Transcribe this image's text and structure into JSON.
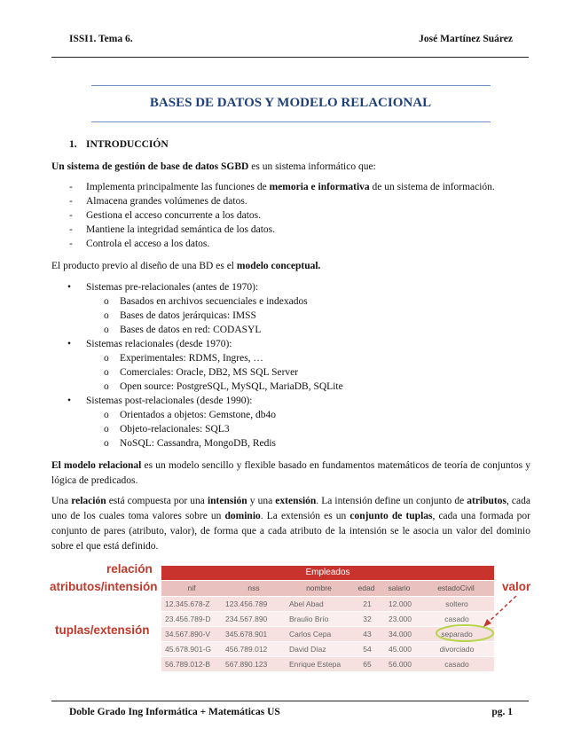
{
  "header": {
    "left": "ISSI1. Tema 6.",
    "right": "José Martínez Suárez"
  },
  "title": "BASES DE DATOS Y MODELO RELACIONAL",
  "section": {
    "number": "1.",
    "title": "INTRODUCCIÓN"
  },
  "intro": [
    {
      "text": "Un sistema de gestión de base de datos SGBD",
      "bold": true
    },
    {
      "text": " es un sistema informático que:"
    }
  ],
  "intro_list": [
    [
      {
        "text": "Implementa principalmente las funciones de "
      },
      {
        "text": "memoria e informativa",
        "bold": true
      },
      {
        "text": " de un sistema de información."
      }
    ],
    [
      {
        "text": "Almacena grandes volúmenes de datos."
      }
    ],
    [
      {
        "text": "Gestiona el acceso concurrente a los datos."
      }
    ],
    [
      {
        "text": "Mantiene la integridad semántica de los datos."
      }
    ],
    [
      {
        "text": "Controla el acceso a los datos."
      }
    ]
  ],
  "para2": [
    {
      "text": "El producto previo al diseño de una BD es el "
    },
    {
      "text": "modelo conceptual.",
      "bold": true
    }
  ],
  "systems": [
    {
      "label": "Sistemas pre-relacionales (antes de 1970):",
      "items": [
        "Basados en archivos secuenciales e indexados",
        "Bases de datos jerárquicas: IMSS",
        "Bases de datos en red: CODASYL"
      ]
    },
    {
      "label": "Sistemas relacionales (desde 1970):",
      "items": [
        "Experimentales: RDMS, Ingres, …",
        "Comerciales: Oracle, DB2, MS SQL Server",
        "Open source: PostgreSQL, MySQL, MariaDB, SQLite"
      ]
    },
    {
      "label": "Sistemas post-relacionales (desde 1990):",
      "items": [
        "Orientados a objetos: Gemstone, db4o",
        "Objeto-relacionales: SQL3",
        "NoSQL: Cassandra, MongoDB, Redis"
      ]
    }
  ],
  "para3": [
    {
      "text": "El modelo relacional",
      "bold": true
    },
    {
      "text": " es un modelo sencillo y flexible basado en fundamentos matemáticos de teoría de conjuntos y lógica de predicados."
    }
  ],
  "para4": [
    {
      "text": "Una "
    },
    {
      "text": "relación",
      "bold": true
    },
    {
      "text": " está compuesta por una "
    },
    {
      "text": "intensión",
      "bold": true
    },
    {
      "text": " y una "
    },
    {
      "text": "extensión",
      "bold": true
    },
    {
      "text": ". La intensión define un conjunto de "
    },
    {
      "text": "atributos",
      "bold": true
    },
    {
      "text": ", cada uno de los cuales toma valores sobre un "
    },
    {
      "text": "dominio",
      "bold": true
    },
    {
      "text": ". La extensión es un "
    },
    {
      "text": "conjunto de tuplas",
      "bold": true
    },
    {
      "text": ", cada una formada por conjunto de pares (atributo, valor), de forma que a cada atributo de la intensión se le asocia un valor del dominio sobre el que está definido."
    }
  ],
  "figure": {
    "labels": {
      "relation": "relación",
      "attributes": "atributos/intensión",
      "tuples": "tuplas/extensión",
      "value": "valor"
    },
    "table": {
      "title": "Empleados",
      "columns": [
        "nif",
        "nss",
        "nombre",
        "edad",
        "salario",
        "estadoCivil"
      ],
      "rows": [
        [
          "12.345.678-Z",
          "123.456.789",
          "Abel Abad",
          21,
          "12.000",
          "soltero"
        ],
        [
          "23.456.789-D",
          "234.567.890",
          "Braulio Brío",
          32,
          "23.000",
          "casado"
        ],
        [
          "34.567.890-V",
          "345.678.901",
          "Carlos Cepa",
          43,
          "34.000",
          "separado"
        ],
        [
          "45.678.901-G",
          "456.789.012",
          "David Díaz",
          54,
          "45.000",
          "divorciado"
        ],
        [
          "56.789.012-B",
          "567.890.123",
          "Enrique Estepa",
          65,
          "56.000",
          "casado"
        ]
      ]
    }
  },
  "footer": {
    "left": "Doble Grado Ing Informática + Matemáticas US",
    "right": "pg. 1"
  }
}
